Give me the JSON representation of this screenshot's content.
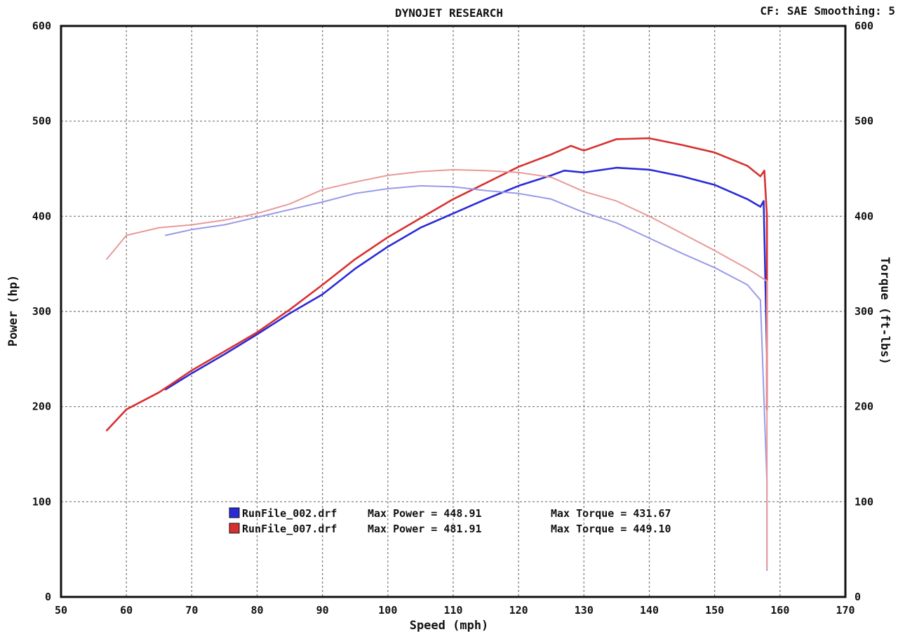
{
  "chart_data": {
    "type": "line",
    "title": "DYNOJET RESEARCH",
    "header_right": "CF: SAE   Smoothing: 5",
    "xlabel": "Speed (mph)",
    "ylabel": "Power (hp)",
    "y2label": "Torque (ft-lbs)",
    "xlim": [
      50,
      170
    ],
    "ylim": [
      0,
      600
    ],
    "y2lim": [
      0,
      600
    ],
    "x_ticks": [
      "50",
      "60",
      "70",
      "80",
      "90",
      "100",
      "110",
      "120",
      "130",
      "140",
      "150",
      "160",
      "170"
    ],
    "y_ticks": [
      "0",
      "100",
      "200",
      "300",
      "400",
      "500",
      "600"
    ],
    "y2_ticks": [
      "0",
      "100",
      "200",
      "300",
      "400",
      "500",
      "600"
    ],
    "grid": true,
    "legend_position": "bottom-center",
    "legend": [
      {
        "file": "RunFile_002.drf",
        "power_label": "Max Power = 448.91",
        "torque_label": "Max Torque = 431.67",
        "color": "#2a2ad8"
      },
      {
        "file": "RunFile_007.drf",
        "power_label": "Max Power = 481.91",
        "torque_label": "Max Torque = 449.10",
        "color": "#d83030"
      }
    ],
    "series": [
      {
        "run": "RunFile_002.drf",
        "measure": "Power",
        "color": "#2a2ad8",
        "x": [
          66,
          70,
          75,
          80,
          85,
          90,
          95,
          100,
          105,
          110,
          115,
          120,
          125,
          127,
          130,
          135,
          140,
          145,
          150,
          155,
          157,
          157.5,
          158,
          158
        ],
        "y": [
          218,
          235,
          255,
          276,
          298,
          318,
          345,
          368,
          388,
          403,
          418,
          432,
          443,
          448,
          446,
          451,
          449,
          442,
          433,
          418,
          410,
          416,
          255,
          197
        ]
      },
      {
        "run": "RunFile_007.drf",
        "measure": "Power",
        "color": "#d83030",
        "x": [
          57,
          60,
          65,
          70,
          75,
          80,
          85,
          90,
          95,
          100,
          105,
          110,
          115,
          120,
          125,
          128,
          130,
          135,
          140,
          145,
          150,
          155,
          157,
          157.6,
          158,
          158
        ],
        "y": [
          175,
          197,
          215,
          238,
          258,
          278,
          302,
          328,
          355,
          378,
          398,
          418,
          435,
          452,
          465,
          474,
          469,
          481,
          482,
          475,
          467,
          453,
          442,
          448,
          400,
          197
        ]
      },
      {
        "run": "RunFile_002.drf",
        "measure": "Torque",
        "color": "#9a9ae8",
        "x": [
          66,
          70,
          75,
          80,
          85,
          90,
          95,
          100,
          105,
          110,
          115,
          120,
          125,
          130,
          135,
          140,
          145,
          150,
          155,
          157,
          158,
          158
        ],
        "y": [
          380,
          386,
          391,
          399,
          407,
          415,
          424,
          429,
          432,
          431,
          427,
          424,
          418,
          404,
          393,
          377,
          361,
          346,
          328,
          312,
          120,
          28
        ]
      },
      {
        "run": "RunFile_007.drf",
        "measure": "Torque",
        "color": "#e89a9a",
        "x": [
          57,
          60,
          65,
          70,
          75,
          80,
          85,
          90,
          95,
          100,
          105,
          110,
          115,
          120,
          125,
          130,
          135,
          140,
          145,
          150,
          155,
          158,
          158
        ],
        "y": [
          355,
          380,
          388,
          391,
          396,
          403,
          413,
          428,
          436,
          443,
          447,
          449,
          448,
          446,
          441,
          426,
          416,
          400,
          382,
          364,
          345,
          332,
          30
        ]
      }
    ]
  }
}
